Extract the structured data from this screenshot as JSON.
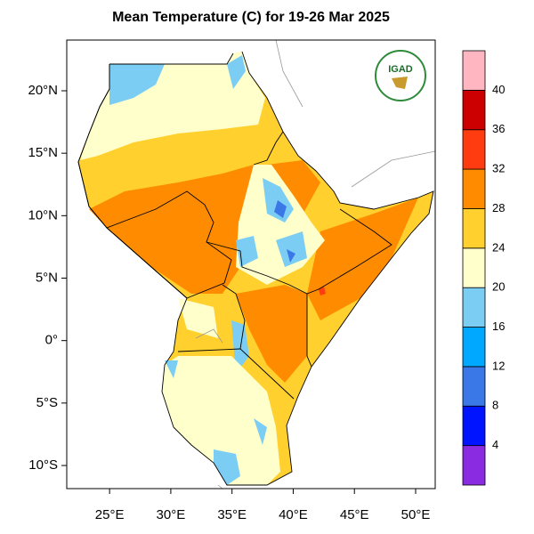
{
  "map": {
    "title": "Mean Temperature (C) for 19-26 Mar 2025",
    "logo_text": "IGAD",
    "xlim": [
      21.5,
      51.6
    ],
    "ylim": [
      -11.85,
      24.06
    ],
    "xticks": [
      {
        "value": 25,
        "label": "25°E"
      },
      {
        "value": 30,
        "label": "30°E"
      },
      {
        "value": 35,
        "label": "35°E"
      },
      {
        "value": 40,
        "label": "40°E"
      },
      {
        "value": 45,
        "label": "45°E"
      },
      {
        "value": 50,
        "label": "50°E"
      }
    ],
    "yticks": [
      {
        "value": 20,
        "label": "20°N"
      },
      {
        "value": 15,
        "label": "15°N"
      },
      {
        "value": 10,
        "label": "10°N"
      },
      {
        "value": 5,
        "label": "5°N"
      },
      {
        "value": 0,
        "label": "0°"
      },
      {
        "value": -5,
        "label": "5°S"
      },
      {
        "value": -10,
        "label": "10°S"
      }
    ],
    "colorbar": {
      "levels": [
        4,
        8,
        12,
        16,
        20,
        24,
        28,
        32,
        36,
        40
      ],
      "colors": [
        "#8a2be2",
        "#0014ff",
        "#3a78e8",
        "#00a8ff",
        "#7ccdf4",
        "#ffffcc",
        "#ffd02e",
        "#ff8c00",
        "#ff3c10",
        "#cc0000",
        "#ffb6c1"
      ]
    }
  }
}
